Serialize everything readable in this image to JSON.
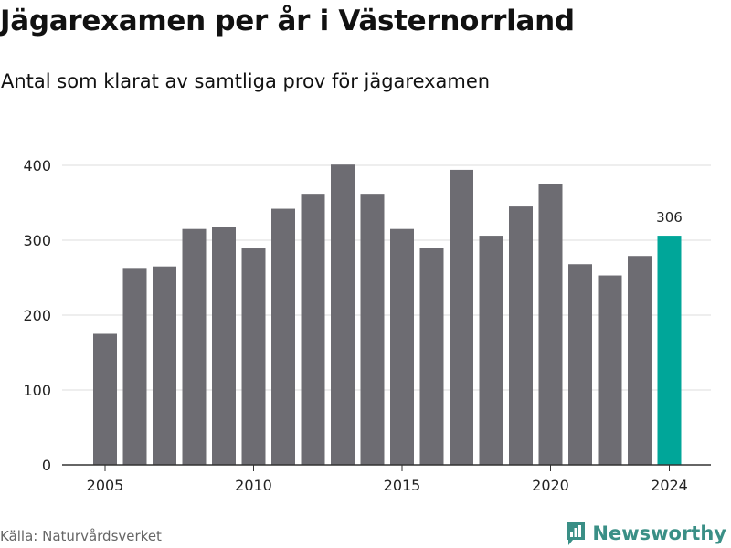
{
  "title": "Jägarexamen per år i Västernorrland",
  "subtitle": "Antal som klarat av samtliga prov för jägarexamen",
  "source": "Källa: Naturvårdsverket",
  "brand": {
    "name": "Newsworthy",
    "color": "#3a8f86",
    "icon": "bar-chart-flag-icon"
  },
  "colors": {
    "bar": "#6d6c72",
    "highlight": "#00a699",
    "grid": "#dddddd",
    "axis": "#333333"
  },
  "chart_data": {
    "type": "bar",
    "x": [
      2005,
      2006,
      2007,
      2008,
      2009,
      2010,
      2011,
      2012,
      2013,
      2014,
      2015,
      2016,
      2017,
      2018,
      2019,
      2020,
      2021,
      2022,
      2023,
      2024
    ],
    "values": [
      175,
      263,
      265,
      315,
      318,
      289,
      342,
      362,
      401,
      362,
      315,
      290,
      394,
      306,
      345,
      375,
      268,
      253,
      279,
      306
    ],
    "highlight_index": 19,
    "highlight_label": "306",
    "ylim": [
      0,
      400
    ],
    "yticks": [
      0,
      100,
      200,
      300,
      400
    ],
    "xticks": [
      2005,
      2010,
      2015,
      2020,
      2024
    ],
    "xlabel": "",
    "ylabel": "",
    "grid": true
  }
}
